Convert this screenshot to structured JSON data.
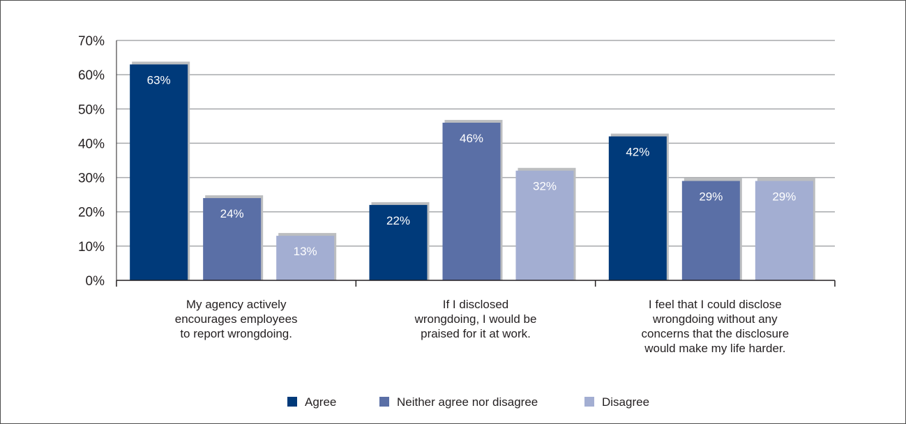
{
  "chart_data": {
    "type": "bar",
    "categories": [
      [
        "My agency actively",
        "encourages employees",
        "to report wrongdoing."
      ],
      [
        "If I disclosed",
        "wrongdoing, I would be",
        "praised for it at work."
      ],
      [
        "I feel that I could disclose",
        "wrongdoing without any",
        "concerns that the disclosure",
        "would make my life harder."
      ]
    ],
    "series": [
      {
        "name": "Agree",
        "color": "#003a7a",
        "values": [
          63,
          22,
          42
        ],
        "labels": [
          "63%",
          "22%",
          "42%"
        ]
      },
      {
        "name": "Neither agree nor disagree",
        "color": "#5a6fa6",
        "values": [
          24,
          46,
          29
        ],
        "labels": [
          "24%",
          "46%",
          "29%"
        ]
      },
      {
        "name": "Disagree",
        "color": "#a3aed2",
        "values": [
          13,
          32,
          29
        ],
        "labels": [
          "13%",
          "32%",
          "29%"
        ]
      }
    ],
    "ylim": [
      0,
      70
    ],
    "yticks": [
      "0%",
      "10%",
      "20%",
      "30%",
      "40%",
      "50%",
      "60%",
      "70%"
    ],
    "shadow_color": "#bcbec0",
    "grid": true,
    "legend_position": "bottom"
  }
}
